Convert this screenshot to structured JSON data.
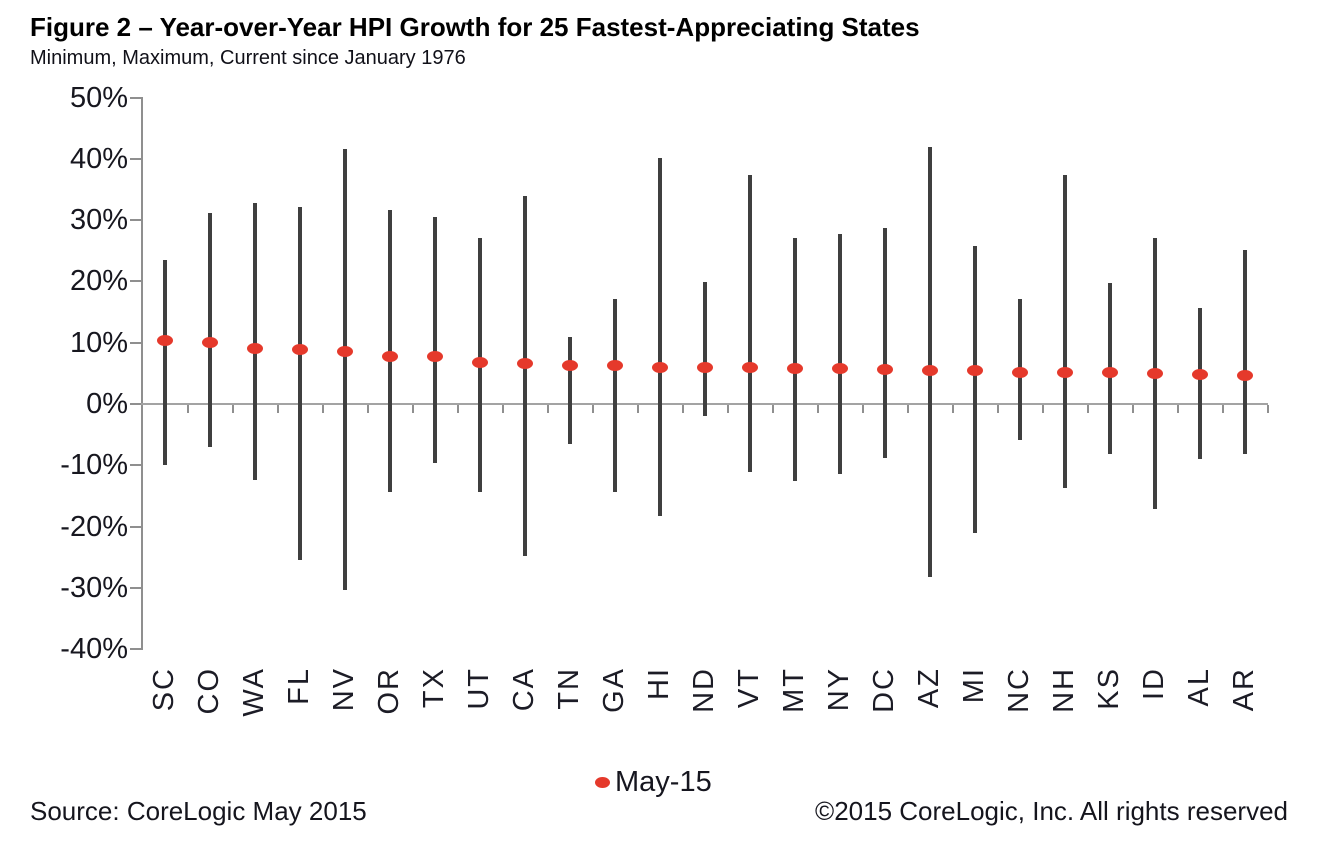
{
  "figure": {
    "title": "Figure 2 – Year-over-Year HPI Growth for 25 Fastest-Appreciating States",
    "subtitle": "Minimum, Maximum, Current since January 1976",
    "footer_left": "Source: CoreLogic May 2015",
    "footer_right": "©2015 CoreLogic, Inc. All rights reserved"
  },
  "legend": {
    "label": "May-15"
  },
  "colors": {
    "range_bar": "#3f3f3f",
    "current_dot": "#e5392b",
    "zero_line": "#a3a3a3",
    "axis_line": "#8f8f8f",
    "tick": "#8f8f8f",
    "axis_text": "#17171f"
  },
  "chart_data": {
    "type": "bar",
    "subtype": "min-max-range-bars-with-current-dot",
    "title": "Figure 2 – Year-over-Year HPI Growth for 25 Fastest-Appreciating States",
    "subtitle": "Minimum, Maximum, Current since January 1976",
    "categories": [
      "SC",
      "CO",
      "WA",
      "FL",
      "NV",
      "OR",
      "TX",
      "UT",
      "CA",
      "TN",
      "GA",
      "HI",
      "ND",
      "VT",
      "MT",
      "NY",
      "DC",
      "AZ",
      "MI",
      "NC",
      "NH",
      "KS",
      "ID",
      "AL",
      "AR"
    ],
    "series": [
      {
        "name": "Minimum",
        "values": [
          -10.0,
          -7.0,
          -12.4,
          -25.5,
          -30.4,
          -14.4,
          -9.6,
          -14.4,
          -24.8,
          -6.6,
          -14.3,
          -18.3,
          -2.0,
          -11.1,
          -12.6,
          -11.4,
          -8.8,
          -28.2,
          -21.0,
          -5.9,
          -13.7,
          -8.2,
          -17.1,
          -9.0,
          -8.2
        ]
      },
      {
        "name": "Maximum",
        "values": [
          23.5,
          31.2,
          32.8,
          32.1,
          41.6,
          31.6,
          30.5,
          27.0,
          33.9,
          10.9,
          17.2,
          40.1,
          19.9,
          37.3,
          27.0,
          27.8,
          28.7,
          41.9,
          25.8,
          17.1,
          37.3,
          19.8,
          27.0,
          15.6,
          25.2
        ]
      },
      {
        "name": "Current (May-15)",
        "values": [
          10.4,
          10.0,
          9.0,
          8.9,
          8.6,
          7.8,
          7.7,
          6.7,
          6.6,
          6.3,
          6.2,
          6.0,
          5.9,
          5.9,
          5.8,
          5.8,
          5.6,
          5.5,
          5.5,
          5.2,
          5.1,
          5.1,
          4.9,
          4.8,
          4.7
        ]
      }
    ],
    "xlabel": "",
    "ylabel": "",
    "ylim": [
      -40,
      50
    ],
    "ytick_step": 10,
    "ytick_labels": [
      "50%",
      "40%",
      "30%",
      "20%",
      "10%",
      "0%",
      "-10%",
      "-20%",
      "-30%",
      "-40%"
    ],
    "grid": false,
    "legend_position": "bottom",
    "legend_entries": [
      "May-15"
    ]
  }
}
